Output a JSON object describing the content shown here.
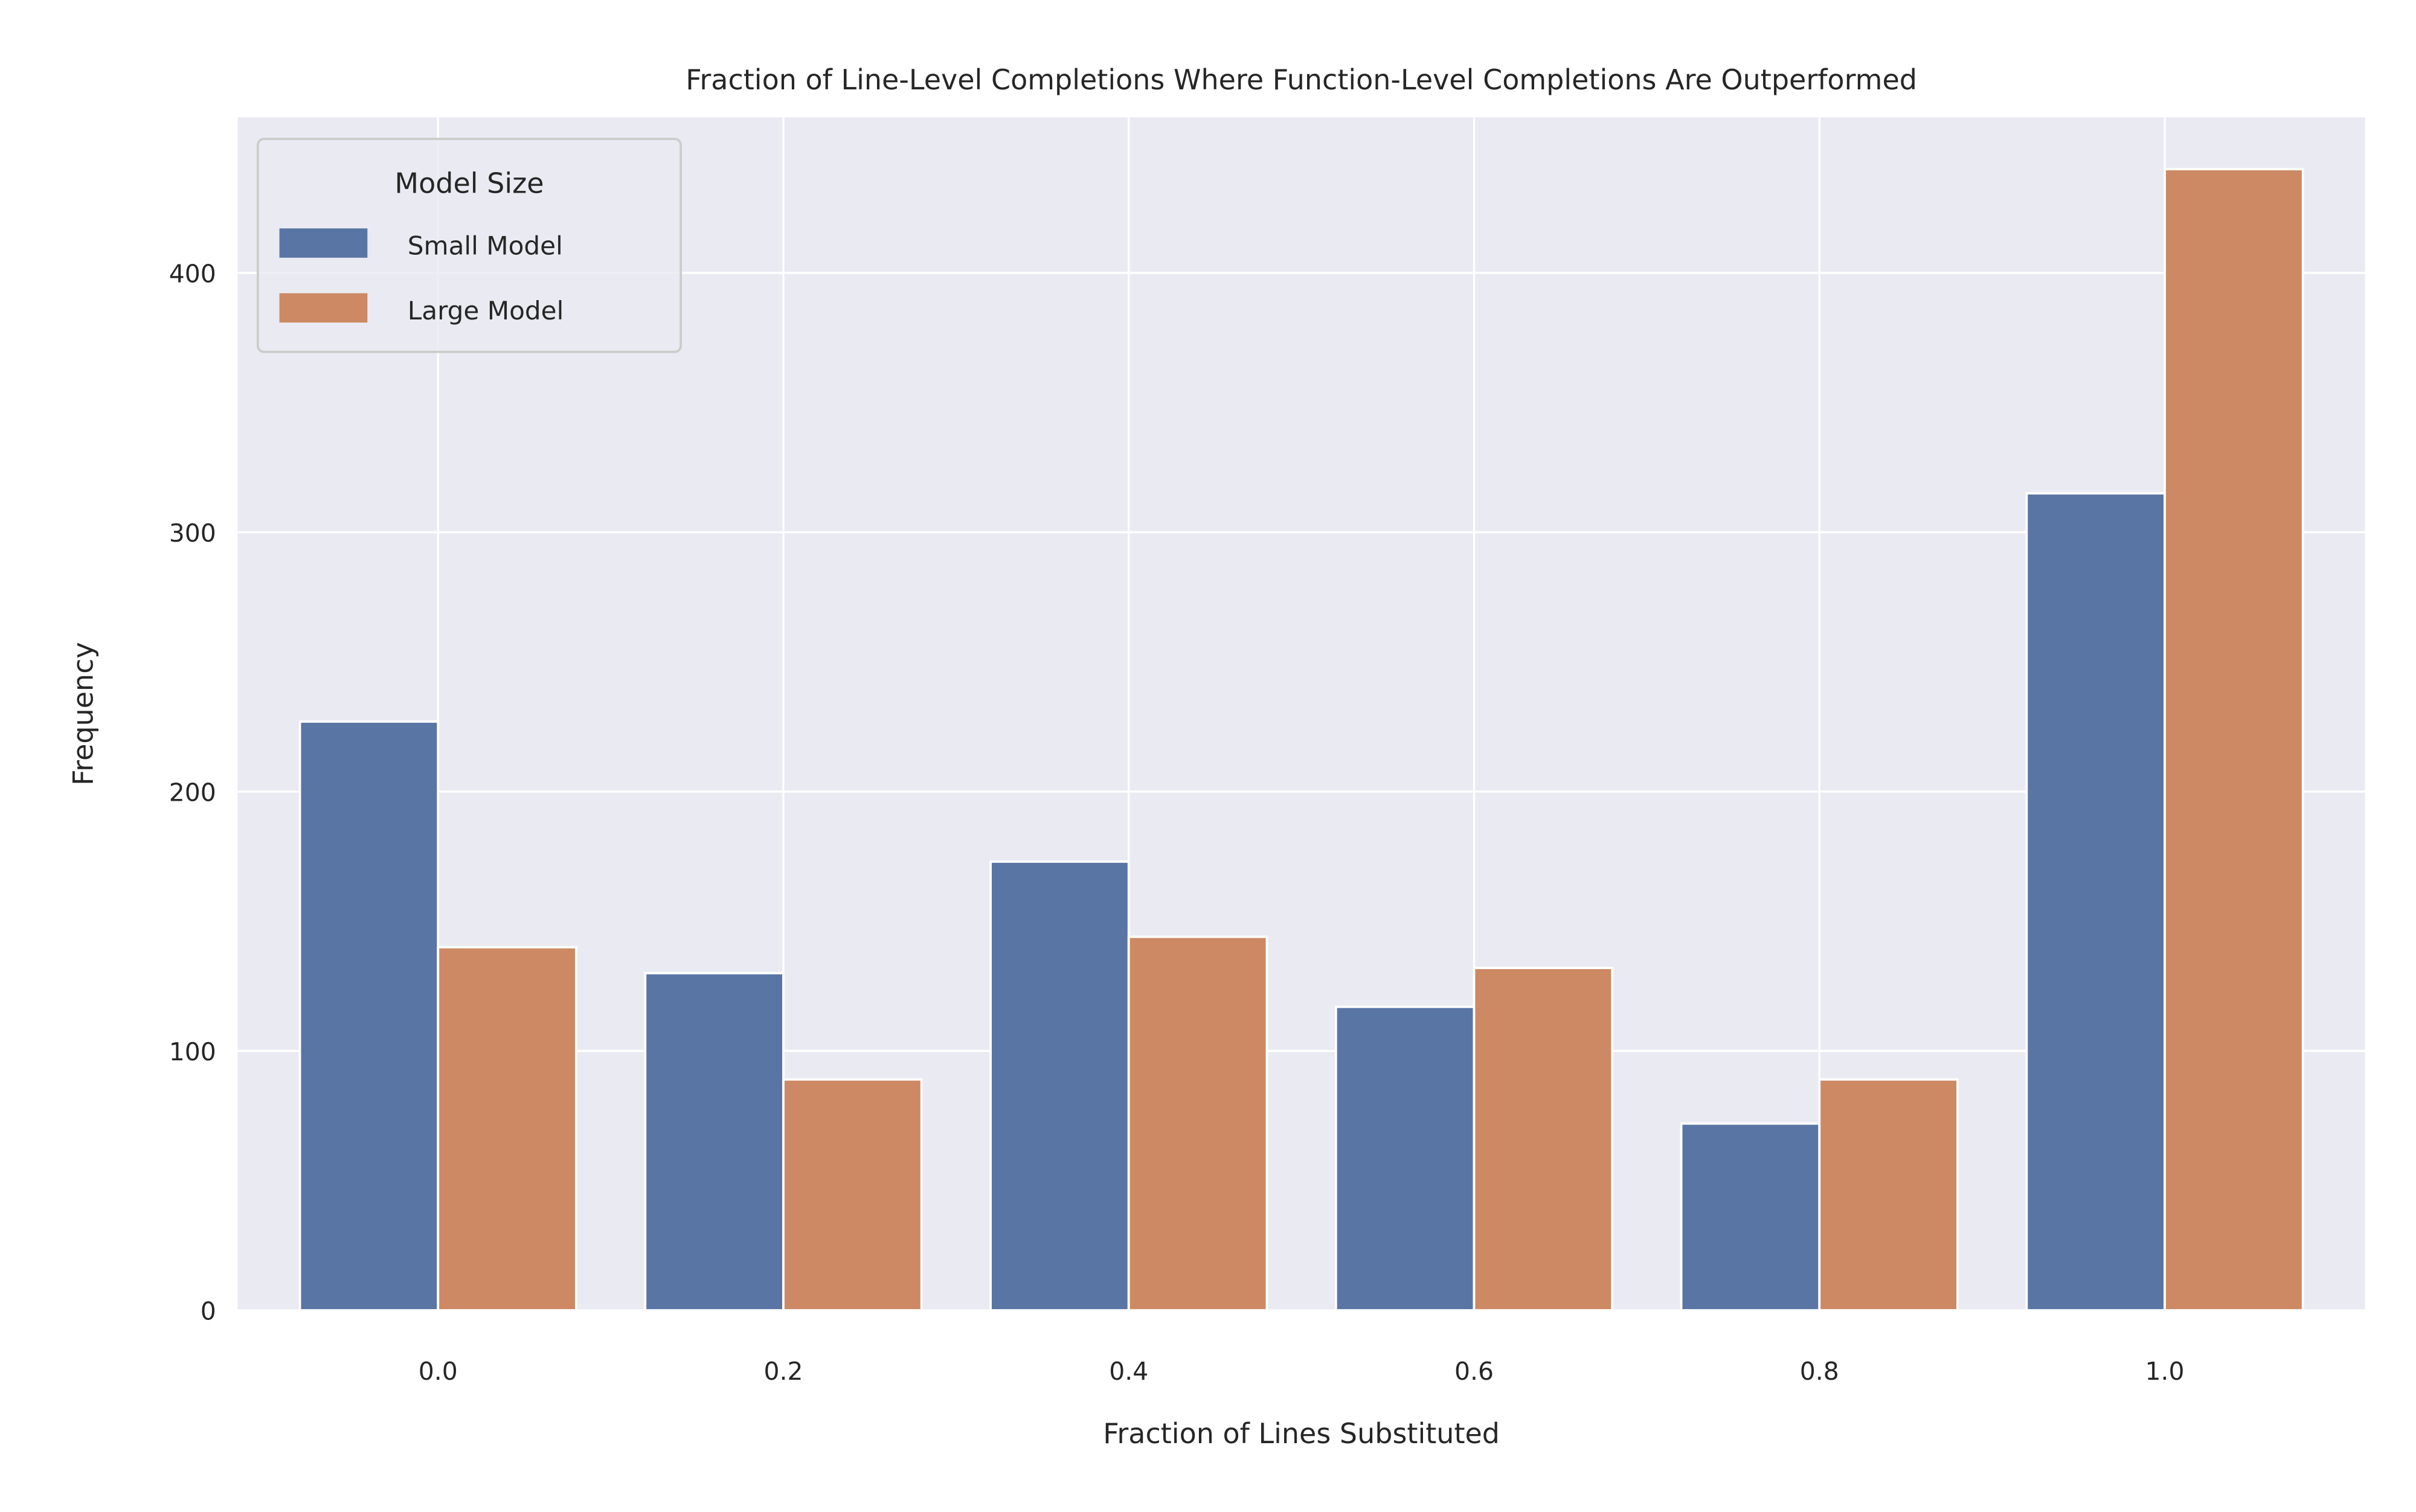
{
  "chart_data": {
    "type": "bar",
    "title": "Fraction of Line-Level Completions Where Function-Level Completions Are Outperformed",
    "xlabel": "Fraction of Lines Substituted",
    "ylabel": "Frequency",
    "categories": [
      "0.0",
      "0.2",
      "0.4",
      "0.6",
      "0.8",
      "1.0"
    ],
    "series": [
      {
        "name": "Small Model",
        "color": "#5975a4",
        "values": [
          227,
          130,
          173,
          117,
          72,
          315
        ]
      },
      {
        "name": "Large Model",
        "color": "#cc8963",
        "values": [
          140,
          89,
          144,
          132,
          89,
          440
        ]
      }
    ],
    "ylim": [
      0,
      460
    ],
    "yticks": [
      0,
      100,
      200,
      300,
      400
    ],
    "grid": true,
    "background": "#eaeaf2",
    "legend": {
      "title": "Model Size",
      "position": "top-left"
    }
  }
}
